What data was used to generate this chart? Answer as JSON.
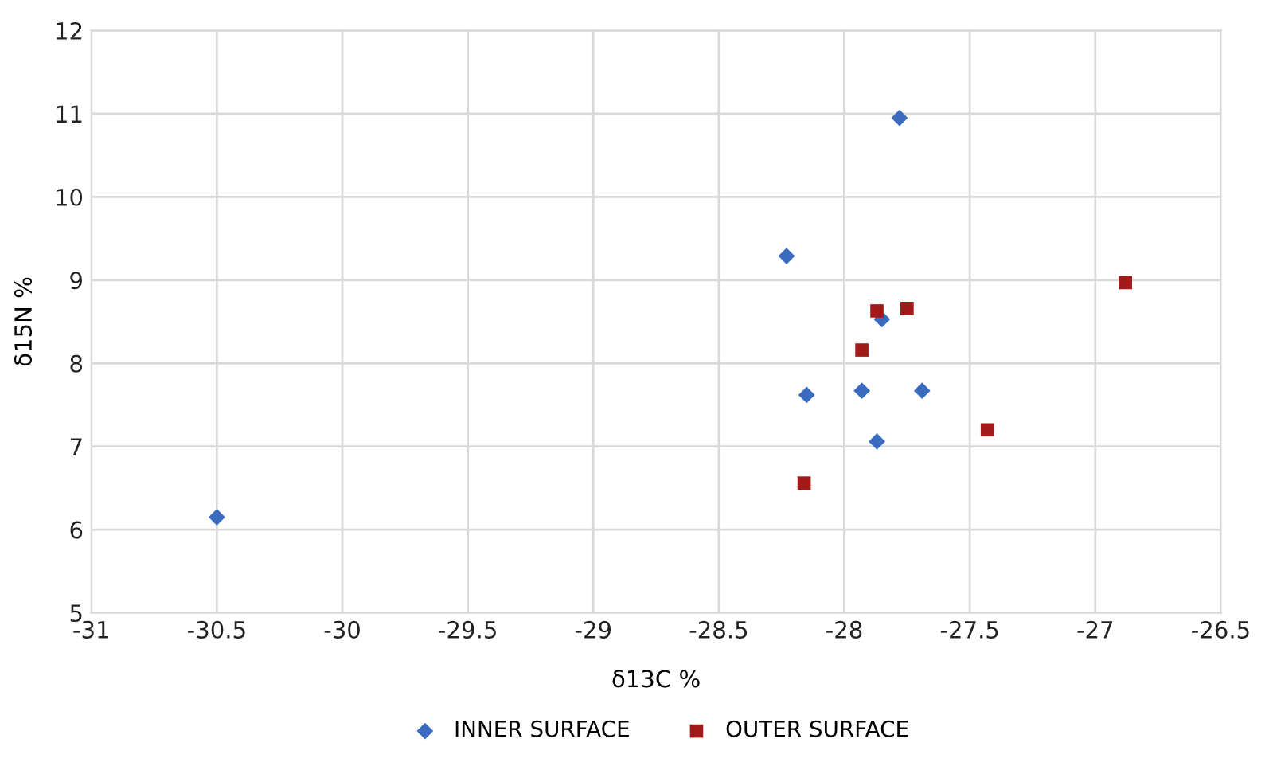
{
  "chart_data": {
    "type": "scatter",
    "xlabel": "δ13C %",
    "ylabel": "δ15N %",
    "xlim": [
      -31,
      -26.5
    ],
    "xticks": [
      -31,
      -30.5,
      -30,
      -29.5,
      -29,
      -28.5,
      -28,
      -27.5,
      -27,
      -26.5
    ],
    "ylim": [
      5,
      12
    ],
    "yticks": [
      5,
      6,
      7,
      8,
      9,
      10,
      11,
      12
    ],
    "grid": true,
    "legend": "bottom",
    "series": [
      {
        "name": "INNER SURFACE",
        "color": "#3a6bbf",
        "marker": "diamond",
        "x": [
          -30.5,
          -28.23,
          -27.78,
          -27.85,
          -28.15,
          -27.93,
          -27.69,
          -27.87
        ],
        "values": [
          6.15,
          9.29,
          10.95,
          8.53,
          7.62,
          7.67,
          7.67,
          7.06
        ]
      },
      {
        "name": "OUTER SURFACE",
        "color": "#a31a1a",
        "marker": "square",
        "x": [
          -27.87,
          -27.75,
          -27.93,
          -27.43,
          -28.16,
          -26.88
        ],
        "values": [
          8.63,
          8.66,
          8.16,
          7.2,
          6.56,
          8.97
        ]
      }
    ]
  }
}
